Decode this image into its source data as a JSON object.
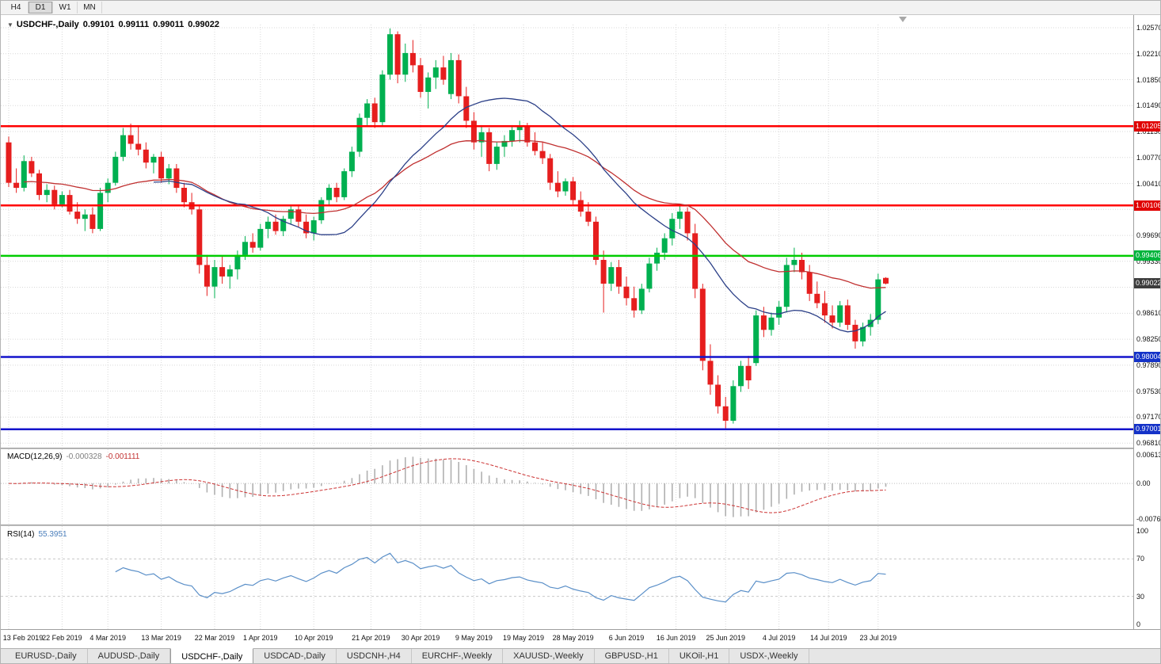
{
  "toolbar": {
    "timeframes": [
      {
        "label": "H4",
        "active": false
      },
      {
        "label": "D1",
        "active": true
      },
      {
        "label": "W1",
        "active": false
      },
      {
        "label": "MN",
        "active": false
      }
    ]
  },
  "icons": {
    "collapse": "▼"
  },
  "chart": {
    "symbol_label": "USDCHF-,Daily",
    "ohlc": {
      "open": "0.99101",
      "high": "0.99111",
      "low": "0.99011",
      "close": "0.99022"
    }
  },
  "price_axis": {
    "labels": [
      "1.02570",
      "1.02210",
      "1.01850",
      "1.01490",
      "1.01130",
      "1.00770",
      "1.00410",
      "0.99690",
      "0.99330",
      "0.98610",
      "0.98250",
      "0.97890",
      "0.97530",
      "0.97170",
      "0.96810"
    ],
    "badges": [
      {
        "label": "1.01205",
        "price": 1.01205,
        "bg": "#E00000"
      },
      {
        "label": "1.00106",
        "price": 1.00106,
        "bg": "#E00000"
      },
      {
        "label": "0.99406",
        "price": 0.99406,
        "bg": "#00B43C"
      },
      {
        "label": "0.99022",
        "price": 0.99022,
        "bg": "#3C3C3C"
      },
      {
        "label": "0.98004",
        "price": 0.98004,
        "bg": "#1432C8"
      },
      {
        "label": "0.97001",
        "price": 0.97001,
        "bg": "#1432C8"
      }
    ]
  },
  "indicators": {
    "macd": {
      "label": "MACD(12,26,9)",
      "value": "-0.000328",
      "signal": "-0.001111",
      "axis": [
        "0.00613",
        "0.00",
        "-0.00761"
      ]
    },
    "rsi": {
      "label": "RSI(14)",
      "value": "55.3951",
      "axis": [
        "100",
        "70",
        "30",
        "0"
      ],
      "levels": [
        70,
        30
      ]
    }
  },
  "time_axis": [
    {
      "label": "13 Feb 2019",
      "idx": 0
    },
    {
      "label": "22 Feb 2019",
      "idx": 7
    },
    {
      "label": "4 Mar 2019",
      "idx": 13
    },
    {
      "label": "13 Mar 2019",
      "idx": 20
    },
    {
      "label": "22 Mar 2019",
      "idx": 27
    },
    {
      "label": "1 Apr 2019",
      "idx": 33
    },
    {
      "label": "10 Apr 2019",
      "idx": 40
    },
    {
      "label": "21 Apr 2019",
      "idx": 47.5
    },
    {
      "label": "30 Apr 2019",
      "idx": 54
    },
    {
      "label": "9 May 2019",
      "idx": 61
    },
    {
      "label": "19 May 2019",
      "idx": 67.5
    },
    {
      "label": "28 May 2019",
      "idx": 74
    },
    {
      "label": "6 Jun 2019",
      "idx": 81
    },
    {
      "label": "16 Jun 2019",
      "idx": 87.5
    },
    {
      "label": "25 Jun 2019",
      "idx": 94
    },
    {
      "label": "4 Jul 2019",
      "idx": 101
    },
    {
      "label": "14 Jul 2019",
      "idx": 107.5
    },
    {
      "label": "23 Jul 2019",
      "idx": 114
    }
  ],
  "tabs": [
    {
      "label": "EURUSD-,Daily",
      "active": false
    },
    {
      "label": "AUDUSD-,Daily",
      "active": false
    },
    {
      "label": "USDCHF-,Daily",
      "active": true
    },
    {
      "label": "USDCAD-,Daily",
      "active": false
    },
    {
      "label": "USDCNH-,H4",
      "active": false
    },
    {
      "label": "EURCHF-,Weekly",
      "active": false
    },
    {
      "label": "XAUUSD-,Weekly",
      "active": false
    },
    {
      "label": "GBPUSD-,H1",
      "active": false
    },
    {
      "label": "UKOil-,H1",
      "active": false
    },
    {
      "label": "USDX-,Weekly",
      "active": false
    }
  ],
  "colors": {
    "candle_up": "#00B050",
    "candle_down": "#E61E1E",
    "ma_fast": "#2B3F87",
    "ma_slow": "#C03030",
    "macd_histogram": "#B0B0B0",
    "macd_signal": "#CC3333",
    "rsi_line": "#5A8FC8",
    "grid": "#D8D8D8"
  },
  "chart_data": {
    "type": "candlestick",
    "symbol": "USDCHF",
    "timeframe": "Daily",
    "title": "USDCHF-,Daily",
    "last_ohlc": [
      0.99101,
      0.99111,
      0.99011,
      0.99022
    ],
    "visible_price_range": [
      0.9668,
      1.0259
    ],
    "hlines": [
      {
        "price": 1.01205,
        "color": "#FF0000",
        "width": 2.5
      },
      {
        "price": 1.00106,
        "color": "#FF0000",
        "width": 2.5
      },
      {
        "price": 0.99406,
        "color": "#00CC00",
        "width": 2.5
      },
      {
        "price": 0.98004,
        "color": "#1414CC",
        "width": 2.5
      },
      {
        "price": 0.97001,
        "color": "#1414CC",
        "width": 2.5
      }
    ],
    "overlays": [
      {
        "name": "ma-fast",
        "type": "sma",
        "period": 20,
        "color": "#2B3F87"
      },
      {
        "name": "ma-slow",
        "type": "ema",
        "period": 40,
        "color": "#C03030"
      }
    ],
    "indicators": [
      {
        "name": "MACD",
        "params": [
          12,
          26,
          9
        ],
        "values_shown": [
          -0.000328,
          -0.001111
        ],
        "panel_range": [
          -0.00761,
          0.00613
        ]
      },
      {
        "name": "RSI",
        "params": [
          14
        ],
        "value_shown": 55.3951,
        "levels": [
          70,
          30
        ],
        "range": [
          0,
          100
        ]
      }
    ],
    "candles": [
      [
        "2019-02-13",
        1.0098,
        1.0106,
        1.0036,
        1.0042
      ],
      [
        "2019-02-14",
        1.0042,
        1.0062,
        1.0028,
        1.0035
      ],
      [
        "2019-02-15",
        1.0035,
        1.008,
        1.003,
        1.0072
      ],
      [
        "2019-02-18",
        1.0072,
        1.0078,
        1.005,
        1.0055
      ],
      [
        "2019-02-19",
        1.0055,
        1.006,
        1.0018,
        1.0025
      ],
      [
        "2019-02-20",
        1.0025,
        1.004,
        1.0015,
        1.0032
      ],
      [
        "2019-02-21",
        1.0032,
        1.0038,
        1.0005,
        1.0012
      ],
      [
        "2019-02-22",
        1.0012,
        1.003,
        1.0008,
        1.0025
      ],
      [
        "2019-02-25",
        1.0025,
        1.0032,
        0.9998,
        1.0002
      ],
      [
        "2019-02-26",
        1.0002,
        1.0015,
        0.9985,
        0.9992
      ],
      [
        "2019-02-27",
        0.9992,
        1.0005,
        0.9975,
        0.9998
      ],
      [
        "2019-02-28",
        0.9998,
        1.0008,
        0.9972,
        0.9978
      ],
      [
        "2019-03-01",
        0.9978,
        1.0035,
        0.9975,
        1.0028
      ],
      [
        "2019-03-04",
        1.0028,
        1.0048,
        1.0015,
        1.0042
      ],
      [
        "2019-03-05",
        1.0042,
        1.0085,
        1.0038,
        1.0078
      ],
      [
        "2019-03-06",
        1.0078,
        1.0118,
        1.0072,
        1.0108
      ],
      [
        "2019-03-07",
        1.0108,
        1.0124,
        1.0088,
        1.0096
      ],
      [
        "2019-03-08",
        1.0096,
        1.0122,
        1.008,
        1.0088
      ],
      [
        "2019-03-11",
        1.0088,
        1.0098,
        1.0062,
        1.007
      ],
      [
        "2019-03-12",
        1.007,
        1.0082,
        1.0055,
        1.0078
      ],
      [
        "2019-03-13",
        1.0078,
        1.0085,
        1.0042,
        1.0048
      ],
      [
        "2019-03-14",
        1.0048,
        1.0068,
        1.004,
        1.0062
      ],
      [
        "2019-03-15",
        1.0062,
        1.0068,
        1.0028,
        1.0035
      ],
      [
        "2019-03-18",
        1.0035,
        1.0042,
        1.0008,
        1.0015
      ],
      [
        "2019-03-19",
        1.0015,
        1.0028,
        0.9998,
        1.0005
      ],
      [
        "2019-03-20",
        1.0005,
        1.0012,
        0.9916,
        0.9928
      ],
      [
        "2019-03-21",
        0.9928,
        0.9942,
        0.9885,
        0.9898
      ],
      [
        "2019-03-22",
        0.9898,
        0.9935,
        0.9882,
        0.9925
      ],
      [
        "2019-03-25",
        0.9925,
        0.994,
        0.9902,
        0.9912
      ],
      [
        "2019-03-26",
        0.9912,
        0.9928,
        0.9895,
        0.9922
      ],
      [
        "2019-03-27",
        0.9922,
        0.9948,
        0.9908,
        0.9942
      ],
      [
        "2019-03-28",
        0.9942,
        0.9968,
        0.9935,
        0.996
      ],
      [
        "2019-03-29",
        0.996,
        0.9972,
        0.9945,
        0.9952
      ],
      [
        "2019-04-01",
        0.9952,
        0.9985,
        0.9948,
        0.9978
      ],
      [
        "2019-04-02",
        0.9978,
        0.9995,
        0.9965,
        0.9988
      ],
      [
        "2019-04-03",
        0.9988,
        0.9998,
        0.997,
        0.9975
      ],
      [
        "2019-04-04",
        0.9975,
        0.9996,
        0.9968,
        0.9992
      ],
      [
        "2019-04-05",
        0.9992,
        1.001,
        0.9985,
        1.0005
      ],
      [
        "2019-04-08",
        1.0005,
        1.0012,
        0.998,
        0.9988
      ],
      [
        "2019-04-09",
        0.9988,
        0.9998,
        0.9965,
        0.9972
      ],
      [
        "2019-04-10",
        0.9972,
        0.9995,
        0.9962,
        0.999
      ],
      [
        "2019-04-11",
        0.999,
        1.0022,
        0.9985,
        1.0018
      ],
      [
        "2019-04-12",
        1.0018,
        1.004,
        1.001,
        1.0035
      ],
      [
        "2019-04-15",
        1.0035,
        1.0042,
        1.0015,
        1.0022
      ],
      [
        "2019-04-16",
        1.0022,
        1.0062,
        1.0018,
        1.0058
      ],
      [
        "2019-04-17",
        1.0058,
        1.0092,
        1.005,
        1.0085
      ],
      [
        "2019-04-18",
        1.0085,
        1.0138,
        1.0078,
        1.0132
      ],
      [
        "2019-04-19",
        1.0132,
        1.0158,
        1.0122,
        1.0152
      ],
      [
        "2019-04-22",
        1.0152,
        1.016,
        1.0118,
        1.0126
      ],
      [
        "2019-04-23",
        1.0126,
        1.0198,
        1.012,
        1.0192
      ],
      [
        "2019-04-24",
        1.0192,
        1.0256,
        1.0185,
        1.0248
      ],
      [
        "2019-04-25",
        1.0248,
        1.0252,
        1.018,
        1.0192
      ],
      [
        "2019-04-26",
        1.0192,
        1.0235,
        1.0182,
        1.0222
      ],
      [
        "2019-04-29",
        1.0222,
        1.024,
        1.0195,
        1.0205
      ],
      [
        "2019-04-30",
        1.0205,
        1.0215,
        1.016,
        1.0168
      ],
      [
        "2019-05-01",
        1.0168,
        1.0195,
        1.0145,
        1.0188
      ],
      [
        "2019-05-02",
        1.0188,
        1.0212,
        1.0172,
        1.0202
      ],
      [
        "2019-05-03",
        1.0202,
        1.0218,
        1.0178,
        1.0185
      ],
      [
        "2019-05-06",
        1.0165,
        1.0222,
        1.0158,
        1.0212
      ],
      [
        "2019-05-07",
        1.0212,
        1.022,
        1.0152,
        1.0162
      ],
      [
        "2019-05-08",
        1.0162,
        1.0175,
        1.0118,
        1.0128
      ],
      [
        "2019-05-09",
        1.0128,
        1.014,
        1.0088,
        1.0098
      ],
      [
        "2019-05-10",
        1.0098,
        1.0122,
        1.0078,
        1.0112
      ],
      [
        "2019-05-13",
        1.0112,
        1.0118,
        1.0058,
        1.0068
      ],
      [
        "2019-05-14",
        1.0068,
        1.0098,
        1.006,
        1.0092
      ],
      [
        "2019-05-15",
        1.0092,
        1.0108,
        1.0078,
        1.01
      ],
      [
        "2019-05-16",
        1.01,
        1.0122,
        1.0092,
        1.0115
      ],
      [
        "2019-05-17",
        1.0115,
        1.0128,
        1.0098,
        1.012
      ],
      [
        "2019-05-20",
        1.012,
        1.0125,
        1.0092,
        1.0098
      ],
      [
        "2019-05-21",
        1.0098,
        1.0112,
        1.008,
        1.0086
      ],
      [
        "2019-05-22",
        1.0086,
        1.0098,
        1.0068,
        1.0076
      ],
      [
        "2019-05-23",
        1.0076,
        1.0082,
        1.0032,
        1.0042
      ],
      [
        "2019-05-24",
        1.0042,
        1.0058,
        1.0022,
        1.003
      ],
      [
        "2019-05-27",
        1.003,
        1.0048,
        1.0024,
        1.0044
      ],
      [
        "2019-05-28",
        1.0044,
        1.005,
        1.0012,
        1.0018
      ],
      [
        "2019-05-29",
        1.0018,
        1.003,
        0.9995,
        1.0002
      ],
      [
        "2019-05-30",
        1.0002,
        1.0015,
        0.9982,
        0.9988
      ],
      [
        "2019-05-31",
        0.9988,
        0.9995,
        0.9928,
        0.9935
      ],
      [
        "2019-06-03",
        0.9935,
        0.9948,
        0.9862,
        0.9902
      ],
      [
        "2019-06-04",
        0.9902,
        0.9932,
        0.9892,
        0.9925
      ],
      [
        "2019-06-05",
        0.9925,
        0.9935,
        0.9888,
        0.9898
      ],
      [
        "2019-06-06",
        0.9898,
        0.9912,
        0.9872,
        0.9882
      ],
      [
        "2019-06-07",
        0.9882,
        0.9898,
        0.9855,
        0.9865
      ],
      [
        "2019-06-10",
        0.9865,
        0.9902,
        0.986,
        0.9895
      ],
      [
        "2019-06-11",
        0.9895,
        0.9938,
        0.989,
        0.993
      ],
      [
        "2019-06-12",
        0.993,
        0.9952,
        0.992,
        0.9945
      ],
      [
        "2019-06-13",
        0.9945,
        0.9972,
        0.9935,
        0.9965
      ],
      [
        "2019-06-14",
        0.9965,
        1.0,
        0.9955,
        0.9992
      ],
      [
        "2019-06-17",
        0.9992,
        1.0011,
        0.9978,
        1.0002
      ],
      [
        "2019-06-18",
        1.0002,
        1.0008,
        0.9962,
        0.9972
      ],
      [
        "2019-06-19",
        0.9972,
        0.9985,
        0.9882,
        0.9895
      ],
      [
        "2019-06-20",
        0.9895,
        0.9902,
        0.9782,
        0.9795
      ],
      [
        "2019-06-21",
        0.9795,
        0.9818,
        0.9748,
        0.9762
      ],
      [
        "2019-06-24",
        0.9762,
        0.9775,
        0.9722,
        0.9732
      ],
      [
        "2019-06-25",
        0.9732,
        0.9745,
        0.97,
        0.9712
      ],
      [
        "2019-06-26",
        0.9712,
        0.9768,
        0.9708,
        0.976
      ],
      [
        "2019-06-27",
        0.976,
        0.9795,
        0.9752,
        0.9788
      ],
      [
        "2019-06-28",
        0.9788,
        0.9802,
        0.9756,
        0.9768
      ],
      [
        "2019-07-01",
        0.9792,
        0.9865,
        0.9788,
        0.9858
      ],
      [
        "2019-07-02",
        0.9858,
        0.987,
        0.9828,
        0.9838
      ],
      [
        "2019-07-03",
        0.9838,
        0.9862,
        0.983,
        0.9855
      ],
      [
        "2019-07-04",
        0.9855,
        0.9878,
        0.9845,
        0.987
      ],
      [
        "2019-07-05",
        0.987,
        0.9938,
        0.9862,
        0.9928
      ],
      [
        "2019-07-08",
        0.9928,
        0.9952,
        0.9918,
        0.9935
      ],
      [
        "2019-07-09",
        0.9935,
        0.9945,
        0.9908,
        0.9918
      ],
      [
        "2019-07-10",
        0.9918,
        0.9928,
        0.9878,
        0.9888
      ],
      [
        "2019-07-11",
        0.9888,
        0.9905,
        0.9868,
        0.9875
      ],
      [
        "2019-07-12",
        0.9875,
        0.9892,
        0.9848,
        0.9858
      ],
      [
        "2019-07-15",
        0.9858,
        0.9872,
        0.984,
        0.9848
      ],
      [
        "2019-07-16",
        0.9848,
        0.9878,
        0.9842,
        0.9872
      ],
      [
        "2019-07-17",
        0.9872,
        0.988,
        0.9838,
        0.9845
      ],
      [
        "2019-07-18",
        0.9845,
        0.9852,
        0.9812,
        0.9822
      ],
      [
        "2019-07-19",
        0.9822,
        0.9848,
        0.9815,
        0.9842
      ],
      [
        "2019-07-22",
        0.9842,
        0.986,
        0.983,
        0.9852
      ],
      [
        "2019-07-23",
        0.9852,
        0.9916,
        0.9846,
        0.9908
      ],
      [
        "2019-07-24",
        0.99101,
        0.99111,
        0.99011,
        0.99022
      ]
    ]
  }
}
